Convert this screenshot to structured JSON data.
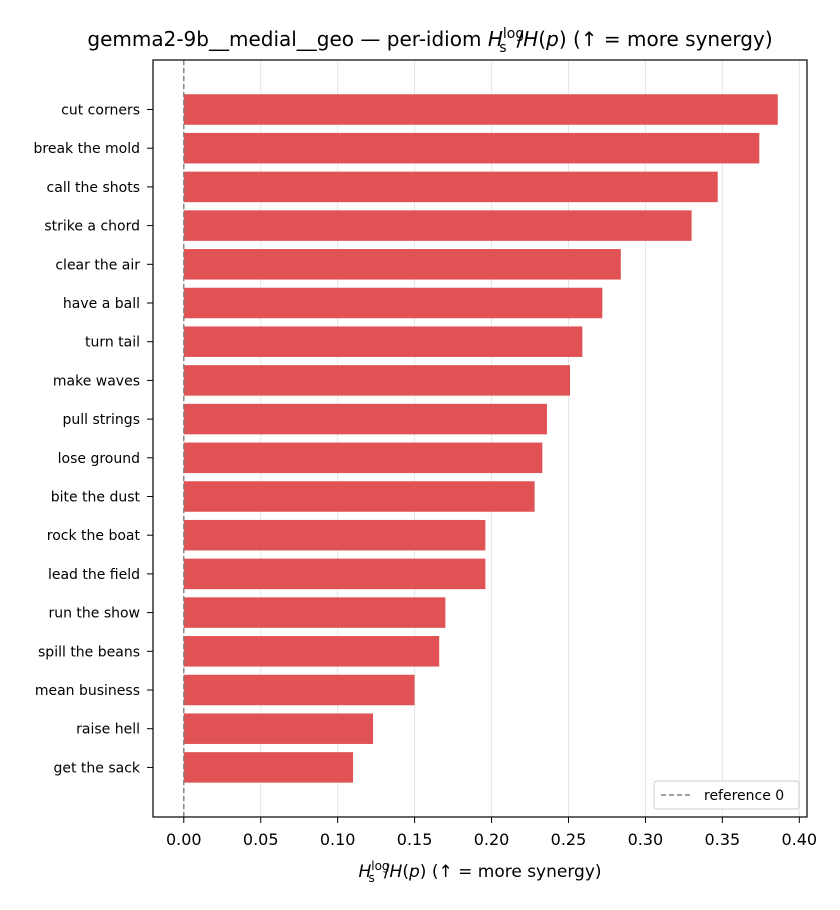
{
  "chart_data": {
    "type": "bar",
    "orientation": "horizontal",
    "title_prefix": "gemma2-9b__medial__geo — per-idiom",
    "title_suffix": "(↑ = more synergy)",
    "xlabel_suffix": "(↑ = more synergy)",
    "metric": {
      "base": "H",
      "sub": "s",
      "sup": "log",
      "rest": "/H(p)"
    },
    "categories": [
      "cut corners",
      "break the mold",
      "call the shots",
      "strike a chord",
      "clear the air",
      "have a ball",
      "turn tail",
      "make waves",
      "pull strings",
      "lose ground",
      "bite the dust",
      "rock the boat",
      "lead the field",
      "run the show",
      "spill the beans",
      "mean business",
      "raise hell",
      "get the sack"
    ],
    "values": [
      0.386,
      0.374,
      0.347,
      0.33,
      0.284,
      0.272,
      0.259,
      0.251,
      0.236,
      0.233,
      0.228,
      0.196,
      0.196,
      0.17,
      0.166,
      0.15,
      0.123,
      0.11
    ],
    "xlim": [
      -0.02,
      0.405
    ],
    "xticks": [
      "0.00",
      "0.05",
      "0.10",
      "0.15",
      "0.20",
      "0.25",
      "0.30",
      "0.35",
      "0.40"
    ],
    "xtick_values": [
      0,
      0.05,
      0.1,
      0.15,
      0.2,
      0.25,
      0.3,
      0.35,
      0.4
    ],
    "grid": "x",
    "reference_line": {
      "value": 0,
      "label": "reference 0",
      "style": "dashed"
    },
    "legend": {
      "location": "lower-right"
    },
    "colors": {
      "bar": "#e05254",
      "reference": "#808080",
      "grid": "#e6e6e6",
      "axis": "#000000"
    }
  }
}
